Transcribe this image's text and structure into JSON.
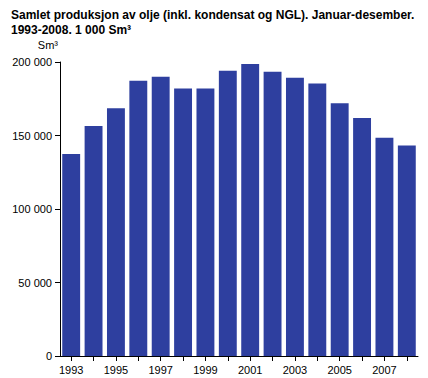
{
  "chart_data": {
    "type": "bar",
    "title": "Samlet produksjon av olje (inkl. kondensat og NGL). Januar-desember. 1993-2008. 1 000 Sm³",
    "y_label": "Sm³",
    "categories": [
      "1993",
      null,
      "1995",
      null,
      "1997",
      null,
      "1999",
      null,
      "2001",
      null,
      "2003",
      null,
      "2005",
      null,
      "2007",
      null
    ],
    "values": [
      137500,
      156500,
      168600,
      187300,
      190000,
      182000,
      182000,
      194000,
      198700,
      193300,
      189300,
      185300,
      171900,
      161900,
      148500,
      143200
    ],
    "color": "#2e3f9f",
    "ylim": [
      0,
      200000
    ],
    "yticks": [
      0,
      {
        "value": 50000,
        "label": "50 000"
      },
      {
        "value": 100000,
        "label": "100 000"
      },
      {
        "value": 150000,
        "label": "150 000"
      },
      {
        "value": 200000,
        "label": "200 000"
      }
    ],
    "grid": false
  }
}
